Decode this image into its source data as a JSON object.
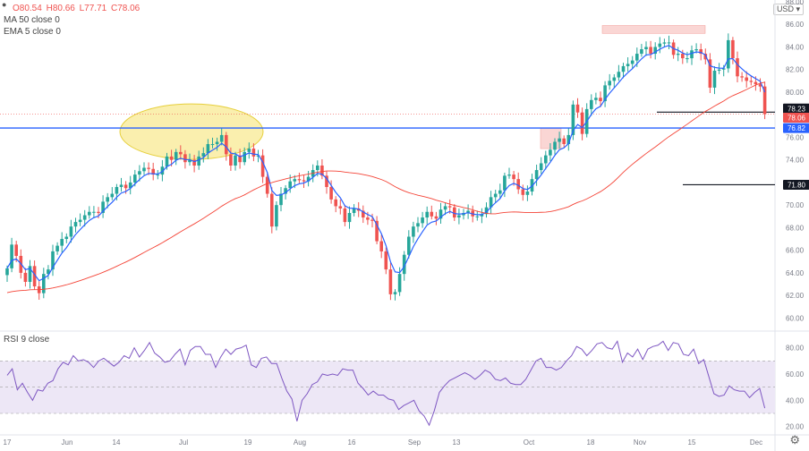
{
  "header": {
    "ohlc_o": "O80.54",
    "ohlc_h": "H80.66",
    "ohlc_l": "L77.71",
    "ohlc_c": "C78.06",
    "ma_label": "MA 50 close 0",
    "ema_label": "EMA 5 close 0",
    "currency": "USD",
    "currency_chevron": "chevron-down-icon"
  },
  "rsi_label": "RSI 9 close",
  "colors": {
    "up": "#26a69a",
    "down": "#ef5350",
    "ema": "#2962ff",
    "ma": "#f44336",
    "support": "#2962ff",
    "rsi_line": "#7e57c2",
    "rsi_band": "#ede7f6",
    "ellipse": "#f5e26b",
    "price_line": "#ef5350"
  },
  "chart_data": [
    {
      "type": "candlestick",
      "title": "",
      "ylim": [
        59,
        88
      ],
      "yticks": [
        "60.00",
        "62.00",
        "64.00",
        "66.00",
        "68.00",
        "70.00",
        "72.00",
        "74.00",
        "76.00",
        "78.00",
        "80.00",
        "82.00",
        "84.00",
        "86.00",
        "88.00"
      ],
      "xticks": [
        "17",
        "Jun",
        "14",
        "Jul",
        "19",
        "Aug",
        "16",
        "Sep",
        "13",
        "Oct",
        "18",
        "Nov",
        "15",
        "Dec"
      ],
      "current_price": "78.06",
      "price_labels": [
        {
          "value": 78.23,
          "label": "78.23",
          "color": "#131722"
        },
        {
          "value": 78.06,
          "label": "78.06",
          "color": "#ef5350"
        },
        {
          "value": 76.82,
          "label": "76.82",
          "color": "#2962ff"
        },
        {
          "value": 71.8,
          "label": "71.80",
          "color": "#131722"
        }
      ],
      "support_line": 76.82,
      "annotations": {
        "resistance_zone": [
          85.2,
          85.9
        ],
        "target_line": 78.23,
        "target_line_2": 71.8,
        "retest_zone": [
          75.0,
          76.8
        ],
        "ellipse_center": 76.5
      },
      "closes": [
        64.4,
        66.5,
        65.5,
        64.0,
        63.2,
        64.6,
        62.8,
        62.2,
        63.9,
        64.3,
        65.9,
        66.4,
        67.0,
        67.2,
        68.1,
        68.5,
        68.7,
        69.1,
        69.4,
        69.4,
        69.3,
        70.3,
        70.7,
        71.0,
        71.6,
        71.8,
        71.5,
        72.0,
        72.7,
        73.0,
        73.3,
        73.2,
        72.7,
        72.7,
        73.4,
        74.3,
        74.0,
        74.7,
        74.5,
        73.8,
        74.0,
        73.5,
        74.3,
        74.6,
        75.4,
        75.4,
        75.6,
        76.2,
        74.5,
        73.5,
        74.4,
        73.8,
        74.7,
        75.0,
        74.3,
        74.4,
        72.5,
        71.0,
        68.1,
        70.0,
        71.0,
        71.5,
        72.1,
        72.3,
        72.2,
        72.1,
        72.5,
        73.1,
        73.5,
        72.6,
        71.6,
        70.5,
        69.9,
        69.7,
        68.5,
        69.3,
        69.7,
        69.5,
        68.9,
        68.7,
        68.6,
        66.8,
        65.9,
        64.3,
        62.1,
        62.3,
        63.9,
        65.6,
        67.2,
        68.1,
        68.4,
        68.9,
        69.4,
        69.0,
        68.8,
        69.6,
        69.9,
        69.8,
        68.9,
        69.1,
        69.3,
        69.5,
        69.0,
        69.0,
        69.2,
        69.8,
        70.7,
        71.0,
        71.3,
        72.6,
        72.7,
        72.3,
        71.4,
        70.9,
        71.2,
        72.3,
        73.1,
        73.7,
        74.4,
        74.9,
        75.6,
        75.9,
        75.4,
        76.2,
        78.9,
        78.2,
        76.3,
        78.5,
        79.3,
        79.5,
        79.2,
        80.6,
        81.0,
        81.3,
        81.8,
        82.3,
        82.5,
        82.8,
        83.4,
        83.8,
        84.0,
        83.4,
        84.0,
        84.3,
        84.4,
        84.4,
        83.3,
        83.4,
        83.0,
        83.0,
        83.7,
        83.8,
        83.4,
        82.9,
        80.4,
        81.9,
        82.0,
        82.1,
        84.6,
        83.0,
        81.4,
        81.3,
        81.0,
        80.9,
        80.7,
        80.5,
        78.06
      ],
      "opens_first": 63.8,
      "ema_label": "EMA 5",
      "ma_label": "MA 50"
    },
    {
      "type": "line",
      "title": "RSI 9",
      "ylim": [
        15,
        90
      ],
      "yticks": [
        "20.00",
        "40.00",
        "60.00",
        "80.00"
      ],
      "band": [
        30,
        70
      ],
      "mid": 50,
      "values": [
        59,
        64,
        48,
        53,
        46,
        40,
        48,
        47,
        53,
        55,
        64,
        69,
        67,
        74,
        70,
        71,
        69,
        65,
        70,
        72,
        69,
        66,
        69,
        74,
        72,
        80,
        73,
        78,
        84,
        76,
        73,
        69,
        70,
        75,
        79,
        67,
        78,
        81,
        81,
        75,
        75,
        65,
        73,
        79,
        75,
        79,
        80,
        82,
        67,
        65,
        72,
        73,
        68,
        68,
        57,
        47,
        41,
        24,
        40,
        45,
        52,
        54,
        60,
        59,
        60,
        59,
        64,
        63,
        63,
        53,
        49,
        44,
        47,
        44,
        44,
        41,
        40,
        33,
        36,
        38,
        40,
        32,
        28,
        21,
        32,
        46,
        51,
        55,
        57,
        59,
        61,
        59,
        56,
        59,
        63,
        61,
        56,
        55,
        57,
        53,
        52,
        52,
        56,
        63,
        70,
        72,
        65,
        65,
        63,
        65,
        70,
        74,
        81,
        79,
        74,
        78,
        83,
        84,
        80,
        79,
        85,
        69,
        76,
        73,
        79,
        71,
        79,
        81,
        82,
        85,
        78,
        84,
        83,
        75,
        74,
        79,
        68,
        71,
        58,
        45,
        43,
        44,
        51,
        48,
        47,
        47,
        42,
        46,
        49,
        34
      ]
    }
  ]
}
